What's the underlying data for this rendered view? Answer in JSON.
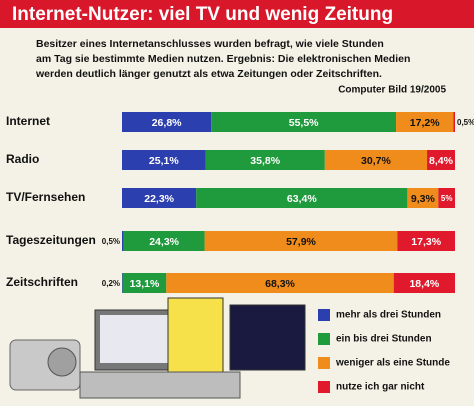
{
  "chart_data": {
    "type": "stacked-bar-horizontal",
    "title": "Internet-Nutzer: viel TV und wenig Zeitung",
    "subtitle": [
      "Besitzer eines Internetanschlusses wurden befragt, wie viele Stunden",
      "am Tag sie bestimmte Medien nutzen. Ergebnis: Die elektronischen Medien",
      "werden deutlich länger genutzt als etwa Zeitungen oder Zeitschriften."
    ],
    "source": "Computer Bild 19/2005",
    "categories": [
      "Internet",
      "Radio",
      "TV/Fernsehen",
      "Tageszeitungen",
      "Zeitschriften"
    ],
    "xlim": [
      0,
      100
    ],
    "series": [
      {
        "name": "mehr als drei Stunden",
        "color": "#2b3fae",
        "values": [
          26.8,
          25.1,
          22.3,
          0.5,
          0.2
        ],
        "value_labels": [
          "26,8%",
          "25,1%",
          "22,3%",
          "0,5%",
          "0,2%"
        ]
      },
      {
        "name": "ein bis drei Stunden",
        "color": "#1f9a3c",
        "values": [
          55.5,
          35.8,
          63.4,
          24.3,
          13.1
        ],
        "value_labels": [
          "55,5%",
          "35,8%",
          "63,4%",
          "24,3%",
          "13,1%"
        ]
      },
      {
        "name": "weniger als eine Stunde",
        "color": "#f08c1c",
        "values": [
          17.2,
          30.7,
          9.3,
          57.9,
          68.3
        ],
        "value_labels": [
          "17,2%",
          "30,7%",
          "9,3%",
          "57,9%",
          "68,3%"
        ]
      },
      {
        "name": "nutze ich gar nicht",
        "color": "#e01a2c",
        "values": [
          0.5,
          8.4,
          5,
          17.3,
          18.4
        ],
        "value_labels": [
          "0,5%",
          "8,4%",
          "5%",
          "17,3%",
          "18,4%"
        ]
      }
    ]
  }
}
